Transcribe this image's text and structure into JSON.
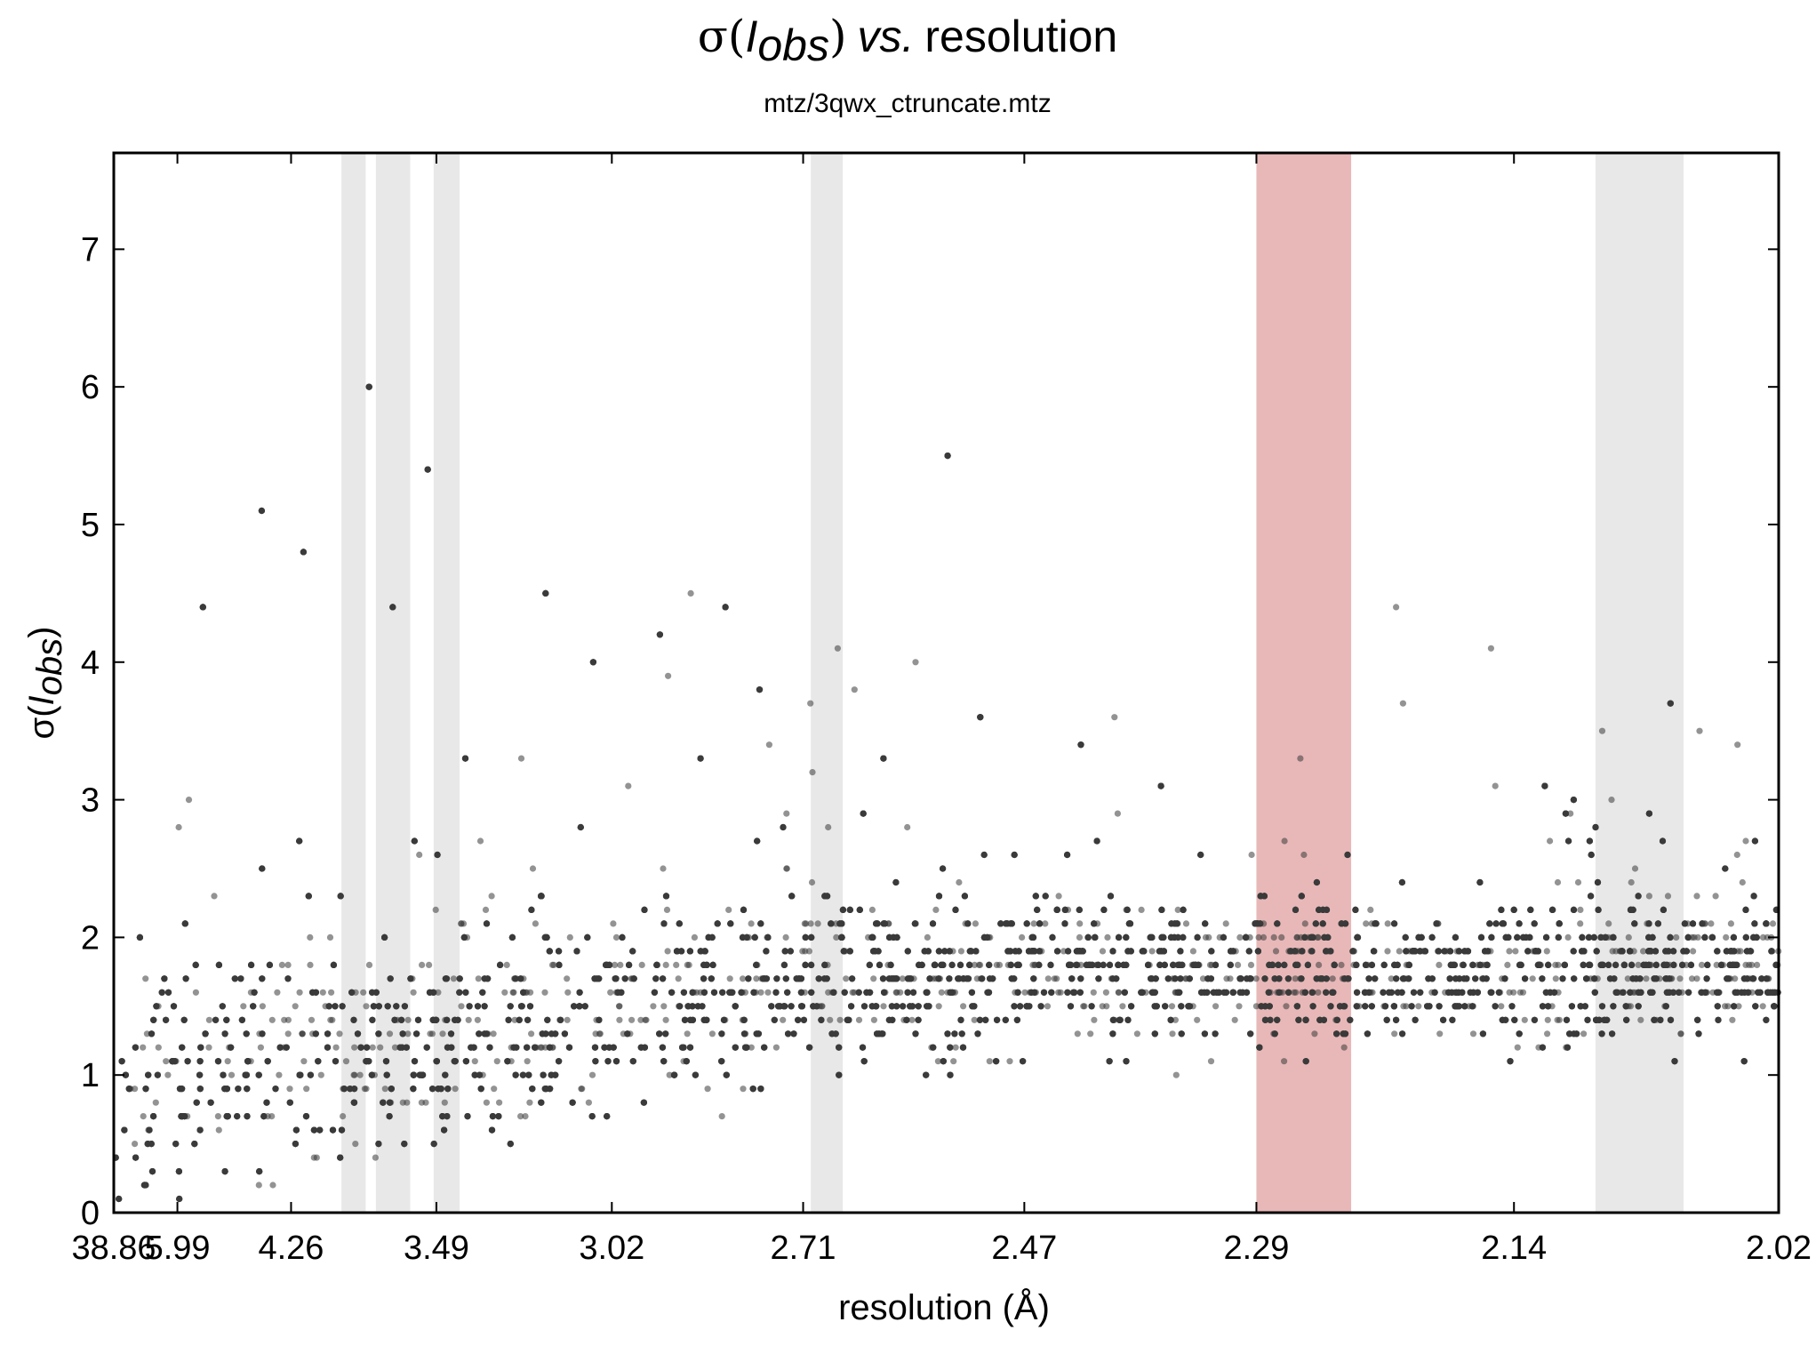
{
  "chart_data": {
    "type": "scatter",
    "title_parts": {
      "sigma": "σ(",
      "i": "I",
      "sub": "obs",
      "close": ")",
      "vs": "vs.",
      "word": "resolution"
    },
    "subtitle": "mtz/3qwx_ctruncate.mtz",
    "xlabel": "resolution (Å)",
    "ylabel_parts": {
      "sigma": "σ(",
      "i": "I",
      "sub": "obs",
      "close": ")"
    },
    "x_scale": "reciprocal-cube (1/d³), reversed",
    "x_ticks": [
      "38.86",
      "5.99",
      "4.26",
      "3.49",
      "3.02",
      "2.71",
      "2.47",
      "2.29",
      "2.14",
      "2.02"
    ],
    "y_ticks": [
      "0",
      "1",
      "2",
      "3",
      "4",
      "5",
      "6",
      "7"
    ],
    "ylim": [
      0,
      7.7
    ],
    "grid": false,
    "points_color": "#3a3a3a",
    "points_opacity": 0.55,
    "ice_ring_color": "#e8e8e8",
    "highlight_color": "#e8b8b8",
    "ice_rings_resolution_ranges": [
      [
        3.92,
        3.79
      ],
      [
        3.74,
        3.59
      ],
      [
        3.5,
        3.41
      ],
      [
        2.7,
        2.66
      ],
      [
        2.29,
        2.23
      ],
      [
        2.1,
        2.06
      ]
    ],
    "highlight_resolution_range": [
      2.29,
      2.23
    ],
    "points_description_bins": {
      "note": "dense horizontal bands of measured sigma values; values quantized at 0.1",
      "low_res_sigma_range": [
        0.1,
        7.7
      ],
      "high_res_core_sigma_range": [
        1.0,
        2.7
      ]
    }
  }
}
